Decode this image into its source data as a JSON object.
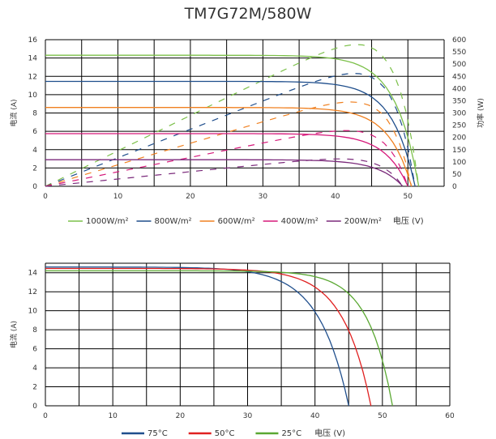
{
  "title": "TM7G72M/580W",
  "chart_data": [
    {
      "type": "line",
      "title": "TM7G72M/580W",
      "xlabel": "电压 (V)",
      "ylabel": "电流 (A)",
      "y2label": "功率 (W)",
      "xlim": [
        0,
        55
      ],
      "ylim": [
        0,
        16
      ],
      "y2lim": [
        0,
        600
      ],
      "x_ticks": [
        0,
        10,
        20,
        30,
        40,
        50
      ],
      "y_ticks": [
        0,
        2,
        4,
        6,
        8,
        10,
        12,
        14,
        16
      ],
      "y2_ticks": [
        0,
        50,
        100,
        150,
        200,
        250,
        300,
        350,
        400,
        450,
        500,
        550,
        600
      ],
      "grid": true,
      "legend_position": "bottom",
      "series": [
        {
          "name": "1000W/m²",
          "color": "#7cc04a",
          "isc": 14.3,
          "vmp": 43.2,
          "voc": 51.5
        },
        {
          "name": "800W/m²",
          "color": "#1f4e8c",
          "isc": 11.45,
          "vmp": 42.8,
          "voc": 51.0
        },
        {
          "name": "600W/m²",
          "color": "#f08020",
          "isc": 8.6,
          "vmp": 42.3,
          "voc": 50.5
        },
        {
          "name": "400W/m²",
          "color": "#d6187a",
          "isc": 5.75,
          "vmp": 41.6,
          "voc": 50.0
        },
        {
          "name": "200W/m²",
          "color": "#7b2a7b",
          "isc": 2.9,
          "vmp": 40.5,
          "voc": 49.3
        }
      ],
      "power_series_peaks_W": [
        580,
        462,
        345,
        228,
        112
      ]
    },
    {
      "type": "line",
      "xlabel": "电压 (V)",
      "ylabel": "电流 (A)",
      "xlim": [
        0,
        60
      ],
      "ylim": [
        0,
        15
      ],
      "x_ticks": [
        0,
        10,
        20,
        30,
        40,
        50,
        60
      ],
      "y_ticks": [
        0,
        2,
        4,
        6,
        8,
        10,
        12,
        14
      ],
      "grid": true,
      "legend_position": "bottom",
      "series": [
        {
          "name": "75°C",
          "color": "#1f4e8c",
          "isc": 14.6,
          "vmp": 33.5,
          "voc": 45.0
        },
        {
          "name": "50°C",
          "color": "#e02020",
          "isc": 14.45,
          "vmp": 37.5,
          "voc": 48.3
        },
        {
          "name": "25°C",
          "color": "#5aa832",
          "isc": 14.2,
          "vmp": 42.0,
          "voc": 51.5
        }
      ]
    }
  ]
}
